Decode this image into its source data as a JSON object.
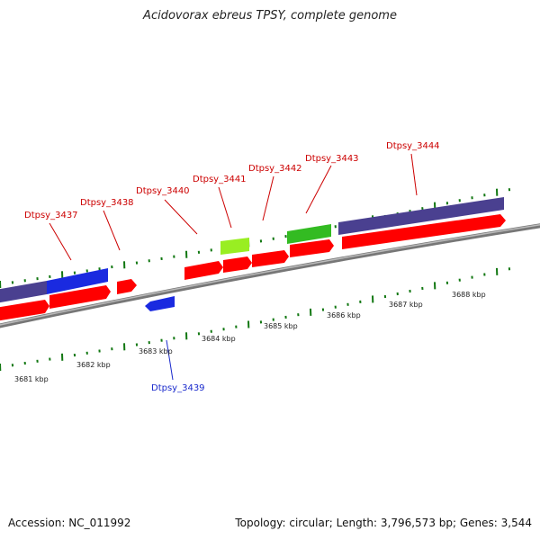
{
  "title": "Acidovorax ebreus TPSY, complete genome",
  "accession": "Accession: NC_011992",
  "summary": "Topology: circular; Length: 3,796,573 bp; Genes: 3,544",
  "colors": {
    "forward_red": "#ff0000",
    "purple": "#4a4090",
    "blue": "#1a2ae0",
    "green": "#33bb22",
    "light_green": "#99ee22",
    "tick": "#117711",
    "backbone": "#888888",
    "label_red": "#cc0000",
    "label_blue": "#1a2acc"
  },
  "kbp_labels": [
    "3681 kbp",
    "3682 kbp",
    "3683 kbp",
    "3684 kbp",
    "3685 kbp",
    "3686 kbp",
    "3687 kbp",
    "3688 kbp"
  ],
  "gene_labels": [
    {
      "name": "Dtpsy_3437",
      "color": "red"
    },
    {
      "name": "Dtpsy_3438",
      "color": "red"
    },
    {
      "name": "Dtpsy_3439",
      "color": "blue"
    },
    {
      "name": "Dtpsy_3440",
      "color": "red"
    },
    {
      "name": "Dtpsy_3441",
      "color": "red"
    },
    {
      "name": "Dtpsy_3442",
      "color": "red"
    },
    {
      "name": "Dtpsy_3443",
      "color": "red"
    },
    {
      "name": "Dtpsy_3444",
      "color": "red"
    }
  ]
}
